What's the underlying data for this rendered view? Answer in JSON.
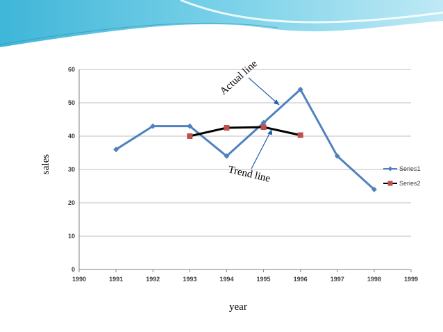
{
  "colors": {
    "series1": "#4F81BD",
    "series2_line": "#000000",
    "series2_marker": "#C0504D",
    "grid": "#BFBFBF",
    "annotation_arrow": "#1F5FA8"
  },
  "chart_data": {
    "type": "line",
    "xlabel": "year",
    "ylabel": "sales",
    "xlim": [
      1990,
      1999
    ],
    "ylim": [
      0,
      60
    ],
    "xticks": [
      1990,
      1991,
      1992,
      1993,
      1994,
      1995,
      1996,
      1997,
      1998,
      1999
    ],
    "yticks": [
      0,
      10,
      20,
      30,
      40,
      50,
      60
    ],
    "grid": true,
    "legend_position": "right",
    "series": [
      {
        "name": "Series1",
        "color": "#4F81BD",
        "marker": "diamond",
        "x": [
          1991,
          1992,
          1993,
          1994,
          1995,
          1996,
          1997,
          1998
        ],
        "y": [
          36,
          43,
          43,
          34,
          44,
          54,
          34,
          24
        ]
      },
      {
        "name": "Series2",
        "color": "#000000",
        "marker": "square",
        "x": [
          1993,
          1994,
          1995,
          1996
        ],
        "y": [
          40,
          42.5,
          42.7,
          40.3
        ]
      }
    ],
    "annotations": [
      {
        "text": "Actual line",
        "points_to": {
          "x": 1995.5,
          "y": 50
        }
      },
      {
        "text": "Trend line",
        "points_to": {
          "x": 1995.2,
          "y": 42
        }
      }
    ]
  }
}
